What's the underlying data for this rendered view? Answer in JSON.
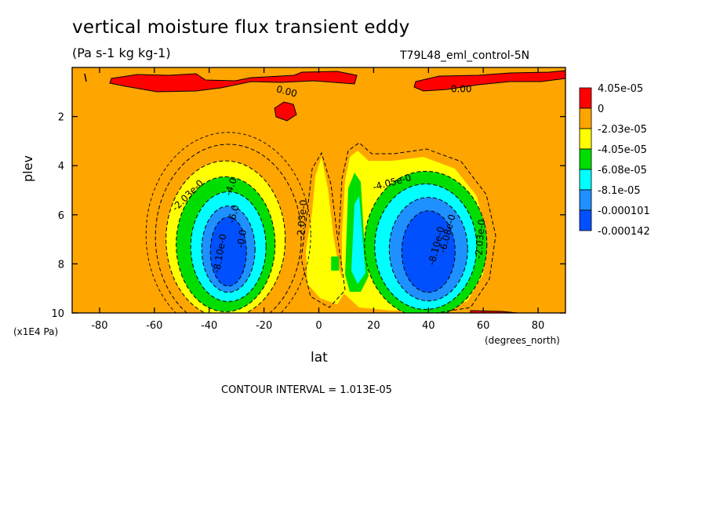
{
  "page": {
    "title": "vertical moisture flux transient eddy",
    "subtitle": "(Pa s-1 kg kg-1)",
    "run_id": "T79L48_eml_control-5N",
    "contour_interval": "CONTOUR INTERVAL = 1.013E-05"
  },
  "chart_data": {
    "type": "heatmap",
    "title": "vertical moisture flux transient eddy",
    "xlabel": "lat",
    "xunit": "(degrees_north)",
    "ylabel": "plev",
    "yunit": "(x1E4 Pa)",
    "xlim": [
      -90,
      90
    ],
    "ylim": [
      0,
      10
    ],
    "y_inverted": true,
    "x_ticks": [
      {
        "value": -80,
        "label": "-80"
      },
      {
        "value": -60,
        "label": "-60"
      },
      {
        "value": -40,
        "label": "-40"
      },
      {
        "value": -20,
        "label": "-20"
      },
      {
        "value": 0,
        "label": "0"
      },
      {
        "value": 20,
        "label": "20"
      },
      {
        "value": 40,
        "label": "40"
      },
      {
        "value": 60,
        "label": "60"
      },
      {
        "value": 80,
        "label": "80"
      }
    ],
    "y_ticks": [
      {
        "value": 2,
        "label": "2"
      },
      {
        "value": 4,
        "label": "4"
      },
      {
        "value": 6,
        "label": "6"
      },
      {
        "value": 8,
        "label": "8"
      },
      {
        "value": 10,
        "label": "10"
      }
    ],
    "levels": [
      {
        "label": "4.05e-05",
        "color": "#ff0000"
      },
      {
        "label": "0",
        "color": "#ffa500"
      },
      {
        "label": "-2.03e-05",
        "color": "#ffff00"
      },
      {
        "label": "-4.05e-05",
        "color": "#00dd00"
      },
      {
        "label": "-6.08e-05",
        "color": "#00ffff"
      },
      {
        "label": "-8.1e-05",
        "color": "#1e90ff"
      },
      {
        "label": "-0.000101",
        "color": "#0050ff"
      },
      {
        "label": "-0.000142",
        "color": ""
      }
    ],
    "background_color": "#ffa500",
    "contour_labels": [
      {
        "text": "0.00",
        "x": -12,
        "y": 1.1,
        "angle": 15
      },
      {
        "text": "0.00",
        "x": 52,
        "y": 1.0,
        "angle": 0
      },
      {
        "text": "-2.03e-0",
        "x": -47,
        "y": 5.3,
        "angle": -45
      },
      {
        "text": "-4.0",
        "x": -31,
        "y": 4.9,
        "angle": -70
      },
      {
        "text": "-6.0",
        "x": -30,
        "y": 6.0,
        "angle": -75
      },
      {
        "text": "-8.10e-0",
        "x": -35,
        "y": 7.6,
        "angle": -80
      },
      {
        "text": "-0.0",
        "x": -27,
        "y": 7.0,
        "angle": -80
      },
      {
        "text": "-2.03e-0",
        "x": -5,
        "y": 6.2,
        "angle": -85
      },
      {
        "text": "-4.05e-0",
        "x": 27,
        "y": 4.8,
        "angle": -15
      },
      {
        "text": "-6.08e-0",
        "x": 48,
        "y": 6.8,
        "angle": -75
      },
      {
        "text": "-8.10e-0",
        "x": 44,
        "y": 7.3,
        "angle": -75
      },
      {
        "text": "-2.03e-0",
        "x": 60,
        "y": 7.0,
        "angle": -85
      }
    ]
  }
}
